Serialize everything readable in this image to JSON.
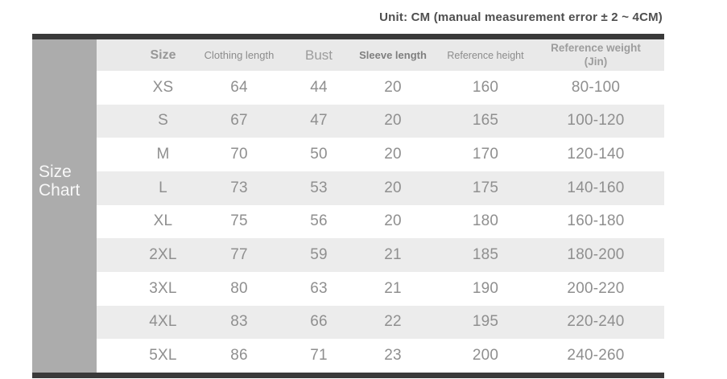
{
  "unit_note": "Unit: CM (manual measurement error ± 2 ~ 4CM)",
  "sidebar": {
    "title": "Size Chart"
  },
  "chart_data": {
    "type": "table",
    "title": "Size Chart",
    "unit_note": "Unit: CM (manual measurement error ± 2 ~ 4CM)",
    "columns": [
      "Size",
      "Clothing length",
      "Bust",
      "Sleeve length",
      "Reference height",
      "Reference weight (Jin)"
    ],
    "rows": [
      [
        "XS",
        "64",
        "44",
        "20",
        "160",
        "80-100"
      ],
      [
        "S",
        "67",
        "47",
        "20",
        "165",
        "100-120"
      ],
      [
        "M",
        "70",
        "50",
        "20",
        "170",
        "120-140"
      ],
      [
        "L",
        "73",
        "53",
        "20",
        "175",
        "140-160"
      ],
      [
        "XL",
        "75",
        "56",
        "20",
        "180",
        "160-180"
      ],
      [
        "2XL",
        "77",
        "59",
        "21",
        "185",
        "180-200"
      ],
      [
        "3XL",
        "80",
        "63",
        "21",
        "190",
        "200-220"
      ],
      [
        "4XL",
        "83",
        "66",
        "22",
        "195",
        "220-240"
      ],
      [
        "5XL",
        "86",
        "71",
        "23",
        "200",
        "240-260"
      ]
    ]
  },
  "colors": {
    "bar": "#3a3a3a",
    "sidebar_bg": "#acacac",
    "sidebar_text": "#f8f8f8",
    "header_bg": "#e9e9e9",
    "stripe_bg": "#ececec",
    "text_muted": "#8f8f8f",
    "note_text": "#4f4f4f"
  }
}
